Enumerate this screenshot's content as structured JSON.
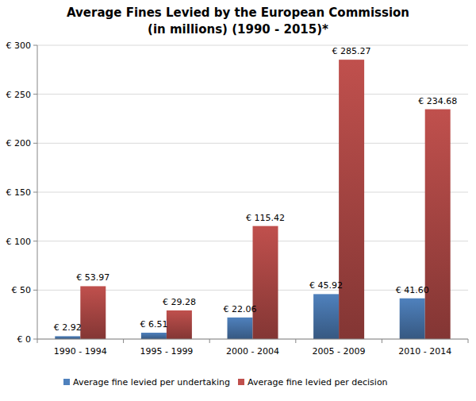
{
  "chart_data": {
    "type": "bar",
    "title": "Average Fines Levied by the European Commission",
    "subtitle": "(in millions) (1990 - 2015)*",
    "categories": [
      "1990 - 1994",
      "1995 - 1999",
      "2000 - 2004",
      "2005 - 2009",
      "2010 - 2014"
    ],
    "series": [
      {
        "name": "Average fine levied per undertaking",
        "color": "#4f81bd",
        "values": [
          2.92,
          6.51,
          22.06,
          45.92,
          41.6
        ],
        "value_labels": [
          "€ 2.92",
          "€ 6.51",
          "€ 22.06",
          "€ 45.92",
          "€ 41.60"
        ]
      },
      {
        "name": "Average fine levied per decision",
        "color": "#c0504d",
        "values": [
          53.97,
          29.28,
          115.42,
          285.27,
          234.68
        ],
        "value_labels": [
          "€ 53.97",
          "€ 29.28",
          "€ 115.42",
          "€ 285.27",
          "€ 234.68"
        ]
      }
    ],
    "ylim": [
      0,
      300
    ],
    "yticks": [
      {
        "value": 0,
        "label": "€ 0"
      },
      {
        "value": 50,
        "label": "€ 50"
      },
      {
        "value": 100,
        "label": "€ 100"
      },
      {
        "value": 150,
        "label": "€ 150"
      },
      {
        "value": 200,
        "label": "€ 200"
      },
      {
        "value": 250,
        "label": "€ 250"
      },
      {
        "value": 300,
        "label": "€ 300"
      }
    ],
    "grid": true,
    "legend": "bottom",
    "data_labels": true
  }
}
